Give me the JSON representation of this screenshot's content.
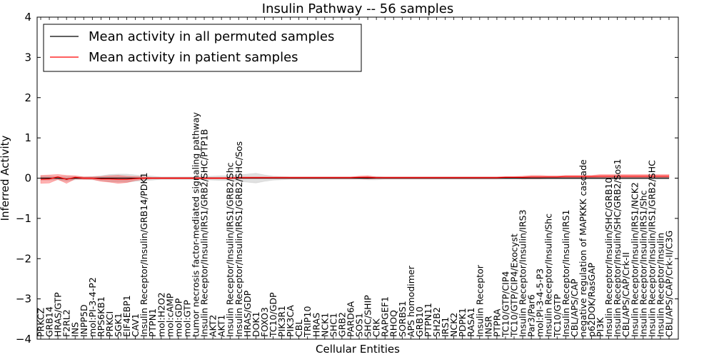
{
  "chart_data": {
    "type": "line",
    "title": "Insulin Pathway -- 56 samples",
    "xlabel": "Cellular Entities",
    "ylabel": "Inferred Activity",
    "ylim": [
      -4,
      4
    ],
    "yticks": [
      "−4",
      "−3",
      "−2",
      "−1",
      "0",
      "1",
      "2",
      "3",
      "4"
    ],
    "categories": [
      "PRKCZ",
      "GRB14",
      "HRAS/GTP",
      "F2RL2",
      "INS",
      "INPP5D",
      "mol:PI-3-4-P2",
      "RPS6KB1",
      "PRKCI",
      "SGK1",
      "EIF4EBP1",
      "CAV1",
      "Insulin Receptor/Insulin/GRB14/PDK1",
      "PTPN1",
      "mol:H2O2",
      "mol:cAMP",
      "mol:GDP",
      "mol:GTP",
      "tumor necrosis factor-mediated signaling pathway",
      "Insulin Receptor/Insulin/IRS1/GRB2/SHC/PTP1B",
      "AKT2",
      "AKT1",
      "Insulin Receptor/Insulin/IRS1/GRB2/Shc",
      "Insulin Receptor/Insulin/IRS1/GRB2/SHC/Sos",
      "HRAS/GDP",
      "DOK1",
      "FOXO3",
      "TC10/GDP",
      "PIK3R1",
      "PIK3CA",
      "CBL",
      "TRIP10",
      "HRAS",
      "NCK1",
      "SHC1",
      "GRB2",
      "PARD6A",
      "SOS1",
      "SHC/SHIP",
      "CRK",
      "RAPGEF1",
      "RHOQ",
      "SORBS1",
      "APS homodimer",
      "GRB10",
      "PTPN11",
      "SH2B2",
      "IRS1",
      "NCK2",
      "PDPK1",
      "RASA1",
      "Insulin Receptor",
      "INSR",
      "PTPRA",
      "TC10/GTP/CIP4",
      "TC10/GTP/CIP4/Exocyst",
      "Insulin Receptor/Insulin/IRS3",
      "Par3/Par6",
      "mol:PI-3-4-5-P3",
      "Insulin Receptor/Insulin/Shc",
      "TC10/GTP",
      "Insulin Receptor/Insulin/IRS1",
      "CBL/APS/CAP",
      "negative regulation of MAPKKK cascade",
      "p62DOK/RasGAP",
      "PI3K",
      "Insulin Receptor/Insulin/SHC/GRB10",
      "Insulin Receptor/Insulin/SHC/GRB2/Sos1",
      "CBL/APS/CAP/Crk-II",
      "Insulin Receptor/Insulin/IRS1/NCK2",
      "Insulin Receptor/Insulin/IRS1/Shc",
      "Insulin Receptor/Insulin/IRS1/GRB2/SHC",
      "Insulin Receptor/Insulin",
      "CBL/APS/CAP/Crk-II/C3G"
    ],
    "series": [
      {
        "name": "Mean activity in all permuted samples",
        "color": "#000000",
        "values": [
          0.0,
          0.0,
          0.0,
          -0.02,
          0.0,
          0.0,
          0.0,
          0.0,
          0.0,
          0.0,
          0.0,
          0.0,
          0.0,
          0.0,
          0.0,
          0.0,
          0.0,
          0.0,
          0.0,
          0.0,
          0.0,
          0.0,
          0.0,
          0.0,
          0.0,
          0.0,
          0.0,
          0.0,
          0.0,
          0.0,
          0.0,
          0.0,
          0.0,
          0.0,
          0.0,
          0.0,
          0.0,
          0.0,
          0.0,
          0.0,
          0.0,
          0.0,
          0.0,
          0.0,
          0.0,
          0.0,
          0.0,
          0.0,
          0.0,
          0.0,
          0.0,
          0.0,
          0.0,
          0.0,
          0.0,
          0.0,
          0.0,
          0.0,
          0.0,
          0.0,
          0.0,
          0.0,
          0.0,
          0.0,
          0.0,
          0.0,
          0.0,
          0.0,
          0.0,
          0.0,
          0.0,
          0.0,
          0.0,
          0.0
        ],
        "band": [
          0.05,
          0.05,
          0.04,
          0.06,
          0.04,
          0.03,
          0.04,
          0.06,
          0.09,
          0.1,
          0.1,
          0.08,
          0.06,
          0.05,
          0.03,
          0.03,
          0.03,
          0.03,
          0.03,
          0.04,
          0.05,
          0.06,
          0.06,
          0.08,
          0.1,
          0.12,
          0.08,
          0.05,
          0.04,
          0.03,
          0.03,
          0.03,
          0.03,
          0.03,
          0.03,
          0.03,
          0.03,
          0.03,
          0.04,
          0.04,
          0.03,
          0.03,
          0.03,
          0.03,
          0.03,
          0.03,
          0.03,
          0.03,
          0.03,
          0.03,
          0.03,
          0.03,
          0.03,
          0.03,
          0.03,
          0.03,
          0.03,
          0.03,
          0.03,
          0.03,
          0.03,
          0.03,
          0.03,
          0.03,
          0.03,
          0.03,
          0.03,
          0.03,
          0.03,
          0.03,
          0.03,
          0.03,
          0.03,
          0.03
        ]
      },
      {
        "name": "Mean activity in patient samples",
        "color": "#ff0000",
        "values": [
          -0.03,
          -0.02,
          0.03,
          -0.03,
          0.02,
          0.0,
          0.0,
          -0.02,
          -0.02,
          -0.03,
          -0.03,
          -0.01,
          0.0,
          0.0,
          0.0,
          0.0,
          0.0,
          0.0,
          0.0,
          0.0,
          0.0,
          0.0,
          0.0,
          0.01,
          0.01,
          0.01,
          0.01,
          0.01,
          0.01,
          0.01,
          0.01,
          0.01,
          0.01,
          0.01,
          0.01,
          0.01,
          0.01,
          0.02,
          0.02,
          0.01,
          0.01,
          0.01,
          0.01,
          0.01,
          0.01,
          0.01,
          0.01,
          0.01,
          0.01,
          0.01,
          0.01,
          0.01,
          0.01,
          0.01,
          0.02,
          0.02,
          0.02,
          0.03,
          0.03,
          0.03,
          0.03,
          0.04,
          0.04,
          0.04,
          0.04,
          0.05,
          0.05,
          0.05,
          0.05,
          0.05,
          0.05,
          0.05,
          0.05,
          0.05
        ],
        "band": [
          0.1,
          0.1,
          0.06,
          0.1,
          0.04,
          0.03,
          0.03,
          0.06,
          0.08,
          0.1,
          0.08,
          0.05,
          0.03,
          0.02,
          0.02,
          0.02,
          0.02,
          0.02,
          0.02,
          0.02,
          0.02,
          0.02,
          0.02,
          0.02,
          0.02,
          0.02,
          0.02,
          0.02,
          0.02,
          0.02,
          0.02,
          0.02,
          0.02,
          0.02,
          0.02,
          0.02,
          0.02,
          0.03,
          0.04,
          0.02,
          0.02,
          0.02,
          0.02,
          0.02,
          0.02,
          0.02,
          0.02,
          0.02,
          0.02,
          0.02,
          0.02,
          0.02,
          0.02,
          0.02,
          0.02,
          0.02,
          0.03,
          0.04,
          0.04,
          0.03,
          0.03,
          0.03,
          0.03,
          0.03,
          0.03,
          0.04,
          0.04,
          0.04,
          0.04,
          0.04,
          0.04,
          0.04,
          0.04,
          0.04
        ]
      }
    ],
    "legend": {
      "position": "top-left",
      "entries": [
        "Mean activity in all permuted samples",
        "Mean activity in patient samples"
      ]
    },
    "grid": false
  }
}
